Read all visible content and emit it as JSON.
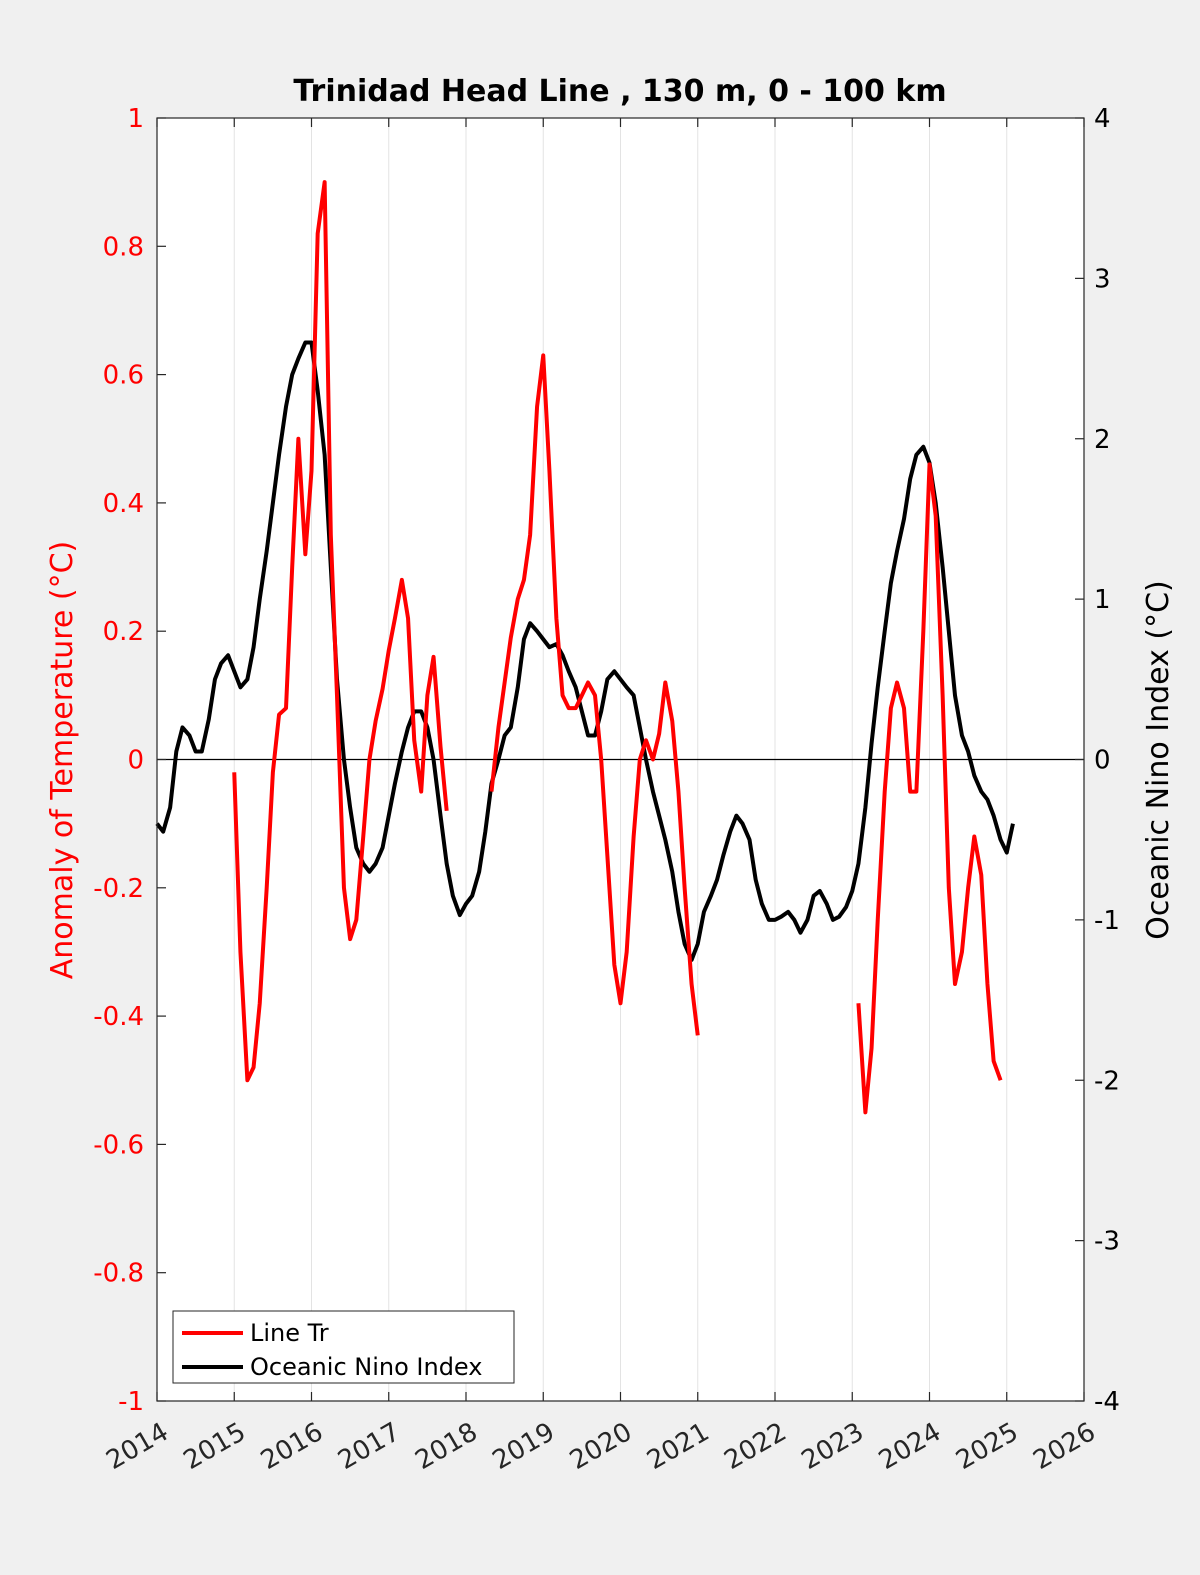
{
  "chart_data": {
    "type": "line",
    "title": "Trinidad Head Line , 130 m, 0 - 100 km",
    "xlabel": "",
    "ylabel_left": "Anomaly of Temperature (°C)",
    "ylabel_right": "Oceanic Nino Index (°C)",
    "xlim": [
      2014,
      2026
    ],
    "ylim_left": [
      -1,
      1
    ],
    "ylim_right": [
      -4,
      4
    ],
    "x_ticks": [
      "2014",
      "2015",
      "2016",
      "2017",
      "2018",
      "2019",
      "2020",
      "2021",
      "2022",
      "2023",
      "2024",
      "2025",
      "2026"
    ],
    "y_left_ticks": [
      "-1",
      "-0.8",
      "-0.6",
      "-0.4",
      "-0.2",
      "0",
      "0.2",
      "0.4",
      "0.6",
      "0.8",
      "1"
    ],
    "y_right_ticks": [
      "-4",
      "-3",
      "-2",
      "-1",
      "0",
      "1",
      "2",
      "3",
      "4"
    ],
    "grid": "vertical",
    "legend_position": "bottom-left",
    "colors": {
      "line_tr": "#ff0000",
      "oni": "#000000",
      "left_axis": "#ff0000",
      "right_axis": "#000000"
    },
    "series": [
      {
        "name": "Line Tr",
        "axis": "left",
        "color": "#ff0000",
        "segments": [
          [
            [
              2015.0,
              -0.02
            ],
            [
              2015.08,
              -0.3
            ],
            [
              2015.17,
              -0.5
            ],
            [
              2015.25,
              -0.48
            ],
            [
              2015.33,
              -0.38
            ],
            [
              2015.42,
              -0.2
            ],
            [
              2015.5,
              -0.02
            ],
            [
              2015.58,
              0.07
            ],
            [
              2015.67,
              0.08
            ],
            [
              2015.75,
              0.3
            ],
            [
              2015.83,
              0.5
            ],
            [
              2015.92,
              0.32
            ],
            [
              2016.0,
              0.45
            ],
            [
              2016.08,
              0.82
            ],
            [
              2016.17,
              0.9
            ],
            [
              2016.25,
              0.35
            ],
            [
              2016.33,
              0.1
            ],
            [
              2016.42,
              -0.2
            ],
            [
              2016.5,
              -0.28
            ],
            [
              2016.58,
              -0.25
            ],
            [
              2016.67,
              -0.12
            ],
            [
              2016.75,
              0.0
            ],
            [
              2016.83,
              0.06
            ],
            [
              2016.92,
              0.11
            ],
            [
              2017.0,
              0.17
            ],
            [
              2017.08,
              0.22
            ],
            [
              2017.17,
              0.28
            ],
            [
              2017.25,
              0.22
            ],
            [
              2017.33,
              0.03
            ],
            [
              2017.42,
              -0.05
            ],
            [
              2017.5,
              0.1
            ],
            [
              2017.58,
              0.16
            ],
            [
              2017.67,
              0.02
            ],
            [
              2017.75,
              -0.08
            ]
          ],
          [
            [
              2018.33,
              -0.05
            ],
            [
              2018.42,
              0.05
            ],
            [
              2018.5,
              0.12
            ],
            [
              2018.58,
              0.19
            ],
            [
              2018.67,
              0.25
            ],
            [
              2018.75,
              0.28
            ],
            [
              2018.83,
              0.35
            ],
            [
              2018.92,
              0.55
            ],
            [
              2019.0,
              0.63
            ],
            [
              2019.08,
              0.45
            ],
            [
              2019.17,
              0.22
            ],
            [
              2019.25,
              0.1
            ],
            [
              2019.33,
              0.08
            ],
            [
              2019.42,
              0.08
            ],
            [
              2019.5,
              0.1
            ],
            [
              2019.58,
              0.12
            ],
            [
              2019.67,
              0.1
            ],
            [
              2019.75,
              0.0
            ],
            [
              2019.83,
              -0.15
            ],
            [
              2019.92,
              -0.32
            ],
            [
              2020.0,
              -0.38
            ],
            [
              2020.08,
              -0.3
            ],
            [
              2020.17,
              -0.12
            ],
            [
              2020.25,
              0.0
            ],
            [
              2020.33,
              0.03
            ],
            [
              2020.42,
              0.0
            ],
            [
              2020.5,
              0.04
            ],
            [
              2020.58,
              0.12
            ],
            [
              2020.67,
              0.06
            ],
            [
              2020.75,
              -0.05
            ],
            [
              2020.83,
              -0.2
            ],
            [
              2020.92,
              -0.35
            ],
            [
              2021.0,
              -0.43
            ]
          ],
          [
            [
              2023.08,
              -0.38
            ],
            [
              2023.17,
              -0.55
            ],
            [
              2023.25,
              -0.45
            ],
            [
              2023.33,
              -0.25
            ],
            [
              2023.42,
              -0.05
            ],
            [
              2023.5,
              0.08
            ],
            [
              2023.58,
              0.12
            ],
            [
              2023.67,
              0.08
            ],
            [
              2023.75,
              -0.05
            ],
            [
              2023.83,
              -0.05
            ],
            [
              2023.92,
              0.2
            ],
            [
              2024.0,
              0.46
            ],
            [
              2024.08,
              0.38
            ],
            [
              2024.17,
              0.1
            ],
            [
              2024.25,
              -0.2
            ],
            [
              2024.33,
              -0.35
            ],
            [
              2024.42,
              -0.3
            ],
            [
              2024.5,
              -0.2
            ],
            [
              2024.58,
              -0.12
            ],
            [
              2024.67,
              -0.18
            ],
            [
              2024.75,
              -0.35
            ],
            [
              2024.83,
              -0.47
            ],
            [
              2024.92,
              -0.5
            ]
          ]
        ]
      },
      {
        "name": "Oceanic Nino Index",
        "axis": "right",
        "color": "#000000",
        "points": [
          [
            2014.0,
            -0.4
          ],
          [
            2014.08,
            -0.45
          ],
          [
            2014.17,
            -0.3
          ],
          [
            2014.25,
            0.05
          ],
          [
            2014.33,
            0.2
          ],
          [
            2014.42,
            0.15
          ],
          [
            2014.5,
            0.05
          ],
          [
            2014.58,
            0.05
          ],
          [
            2014.67,
            0.25
          ],
          [
            2014.75,
            0.5
          ],
          [
            2014.83,
            0.6
          ],
          [
            2014.92,
            0.65
          ],
          [
            2015.0,
            0.55
          ],
          [
            2015.08,
            0.45
          ],
          [
            2015.17,
            0.5
          ],
          [
            2015.25,
            0.7
          ],
          [
            2015.33,
            1.0
          ],
          [
            2015.42,
            1.3
          ],
          [
            2015.5,
            1.6
          ],
          [
            2015.58,
            1.9
          ],
          [
            2015.67,
            2.2
          ],
          [
            2015.75,
            2.4
          ],
          [
            2015.83,
            2.5
          ],
          [
            2015.92,
            2.6
          ],
          [
            2016.0,
            2.6
          ],
          [
            2016.08,
            2.3
          ],
          [
            2016.17,
            1.9
          ],
          [
            2016.25,
            1.2
          ],
          [
            2016.33,
            0.5
          ],
          [
            2016.42,
            0.0
          ],
          [
            2016.5,
            -0.3
          ],
          [
            2016.58,
            -0.55
          ],
          [
            2016.67,
            -0.65
          ],
          [
            2016.75,
            -0.7
          ],
          [
            2016.83,
            -0.65
          ],
          [
            2016.92,
            -0.55
          ],
          [
            2017.0,
            -0.35
          ],
          [
            2017.08,
            -0.15
          ],
          [
            2017.17,
            0.05
          ],
          [
            2017.25,
            0.2
          ],
          [
            2017.33,
            0.3
          ],
          [
            2017.42,
            0.3
          ],
          [
            2017.5,
            0.2
          ],
          [
            2017.58,
            0.0
          ],
          [
            2017.67,
            -0.35
          ],
          [
            2017.75,
            -0.65
          ],
          [
            2017.83,
            -0.85
          ],
          [
            2017.92,
            -0.97
          ],
          [
            2018.0,
            -0.9
          ],
          [
            2018.08,
            -0.85
          ],
          [
            2018.17,
            -0.7
          ],
          [
            2018.25,
            -0.45
          ],
          [
            2018.33,
            -0.15
          ],
          [
            2018.42,
            0.0
          ],
          [
            2018.5,
            0.15
          ],
          [
            2018.58,
            0.2
          ],
          [
            2018.67,
            0.45
          ],
          [
            2018.75,
            0.75
          ],
          [
            2018.83,
            0.85
          ],
          [
            2018.92,
            0.8
          ],
          [
            2019.0,
            0.75
          ],
          [
            2019.08,
            0.7
          ],
          [
            2019.17,
            0.72
          ],
          [
            2019.25,
            0.65
          ],
          [
            2019.33,
            0.55
          ],
          [
            2019.42,
            0.45
          ],
          [
            2019.5,
            0.3
          ],
          [
            2019.58,
            0.15
          ],
          [
            2019.67,
            0.15
          ],
          [
            2019.75,
            0.3
          ],
          [
            2019.83,
            0.5
          ],
          [
            2019.92,
            0.55
          ],
          [
            2020.0,
            0.5
          ],
          [
            2020.08,
            0.45
          ],
          [
            2020.17,
            0.4
          ],
          [
            2020.25,
            0.2
          ],
          [
            2020.33,
            0.0
          ],
          [
            2020.42,
            -0.2
          ],
          [
            2020.5,
            -0.35
          ],
          [
            2020.58,
            -0.5
          ],
          [
            2020.67,
            -0.7
          ],
          [
            2020.75,
            -0.95
          ],
          [
            2020.83,
            -1.15
          ],
          [
            2020.92,
            -1.25
          ],
          [
            2021.0,
            -1.15
          ],
          [
            2021.08,
            -0.95
          ],
          [
            2021.17,
            -0.85
          ],
          [
            2021.25,
            -0.75
          ],
          [
            2021.33,
            -0.6
          ],
          [
            2021.42,
            -0.45
          ],
          [
            2021.5,
            -0.35
          ],
          [
            2021.58,
            -0.4
          ],
          [
            2021.67,
            -0.5
          ],
          [
            2021.75,
            -0.75
          ],
          [
            2021.83,
            -0.9
          ],
          [
            2021.92,
            -1.0
          ],
          [
            2022.0,
            -1.0
          ],
          [
            2022.08,
            -0.98
          ],
          [
            2022.17,
            -0.95
          ],
          [
            2022.25,
            -1.0
          ],
          [
            2022.33,
            -1.08
          ],
          [
            2022.42,
            -1.0
          ],
          [
            2022.5,
            -0.85
          ],
          [
            2022.58,
            -0.82
          ],
          [
            2022.67,
            -0.9
          ],
          [
            2022.75,
            -1.0
          ],
          [
            2022.83,
            -0.98
          ],
          [
            2022.92,
            -0.92
          ],
          [
            2023.0,
            -0.82
          ],
          [
            2023.08,
            -0.65
          ],
          [
            2023.17,
            -0.3
          ],
          [
            2023.25,
            0.1
          ],
          [
            2023.33,
            0.45
          ],
          [
            2023.42,
            0.8
          ],
          [
            2023.5,
            1.1
          ],
          [
            2023.58,
            1.3
          ],
          [
            2023.67,
            1.5
          ],
          [
            2023.75,
            1.75
          ],
          [
            2023.83,
            1.9
          ],
          [
            2023.92,
            1.95
          ],
          [
            2024.0,
            1.85
          ],
          [
            2024.08,
            1.6
          ],
          [
            2024.17,
            1.2
          ],
          [
            2024.25,
            0.8
          ],
          [
            2024.33,
            0.4
          ],
          [
            2024.42,
            0.15
          ],
          [
            2024.5,
            0.05
          ],
          [
            2024.58,
            -0.1
          ],
          [
            2024.67,
            -0.2
          ],
          [
            2024.75,
            -0.25
          ],
          [
            2024.83,
            -0.35
          ],
          [
            2024.92,
            -0.5
          ],
          [
            2025.0,
            -0.58
          ],
          [
            2025.08,
            -0.4
          ]
        ]
      }
    ]
  }
}
